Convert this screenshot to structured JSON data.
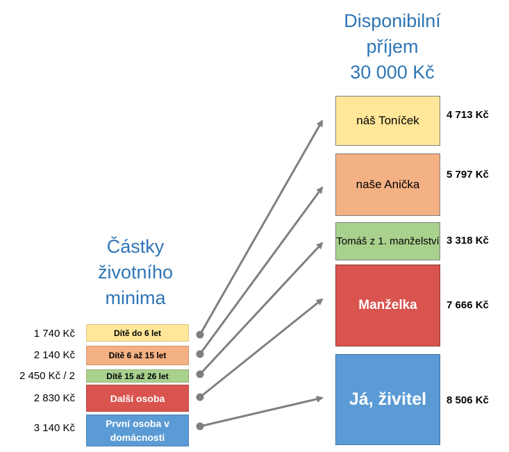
{
  "income_heading": [
    "Disponibilní",
    "příjem",
    "30 000 Kč"
  ],
  "minimum_heading": [
    "Částky",
    "životního",
    "minima"
  ],
  "minimum_rows": [
    {
      "amount": "1 740 Kč",
      "label": "Dítě do 6 let"
    },
    {
      "amount": "2 140 Kč",
      "label": "Dítě 6 až 15 let"
    },
    {
      "amount": "2 450 Kč / 2",
      "label": "Dítě 15 až 26 let"
    },
    {
      "amount": "2 830 Kč",
      "label": "Další osoba"
    },
    {
      "amount": "3 140 Kč",
      "label": "První osoba v domácnosti"
    }
  ],
  "income_rows": [
    {
      "label": "náš Toníček",
      "amount": "4 713 Kč"
    },
    {
      "label": "naše Anička",
      "amount": "5 797 Kč"
    },
    {
      "label": "Tomáš z 1. manželství",
      "amount": "3 318 Kč"
    },
    {
      "label": "Manželka",
      "amount": "7 666 Kč"
    },
    {
      "label": "Já, živitel",
      "amount": "8 506 Kč"
    }
  ],
  "colors": {
    "heading": "#2e75b6",
    "yellow": "#ffe699",
    "orange": "#f4b183",
    "green": "#a9d18e",
    "red": "#d9534f",
    "blue": "#5b9bd5",
    "arrow": "#7f7f7f"
  }
}
